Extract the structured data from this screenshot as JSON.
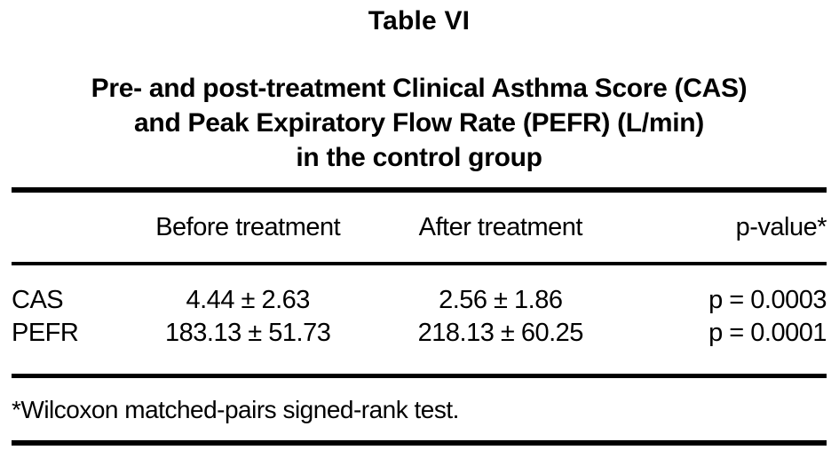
{
  "document": {
    "label": "Table VI",
    "title_lines": [
      "Pre- and post-treatment Clinical Asthma Score (CAS)",
      "and Peak Expiratory Flow Rate (PEFR) (L/min)",
      "in the control group"
    ],
    "columns": [
      "",
      "Before treatment",
      "After treatment",
      "p-value*"
    ],
    "rows": [
      {
        "name": "CAS",
        "before": "4.44 ± 2.63",
        "after": "2.56 ± 1.86",
        "p_value": "p = 0.0003"
      },
      {
        "name": "PEFR",
        "before": "183.13 ± 51.73",
        "after": "218.13 ± 60.25",
        "p_value": "p = 0.0001"
      }
    ],
    "footnote": "*Wilcoxon matched-pairs signed-rank test.",
    "colors": {
      "background": "#ffffff",
      "text": "#000000",
      "rule": "#000000"
    }
  }
}
